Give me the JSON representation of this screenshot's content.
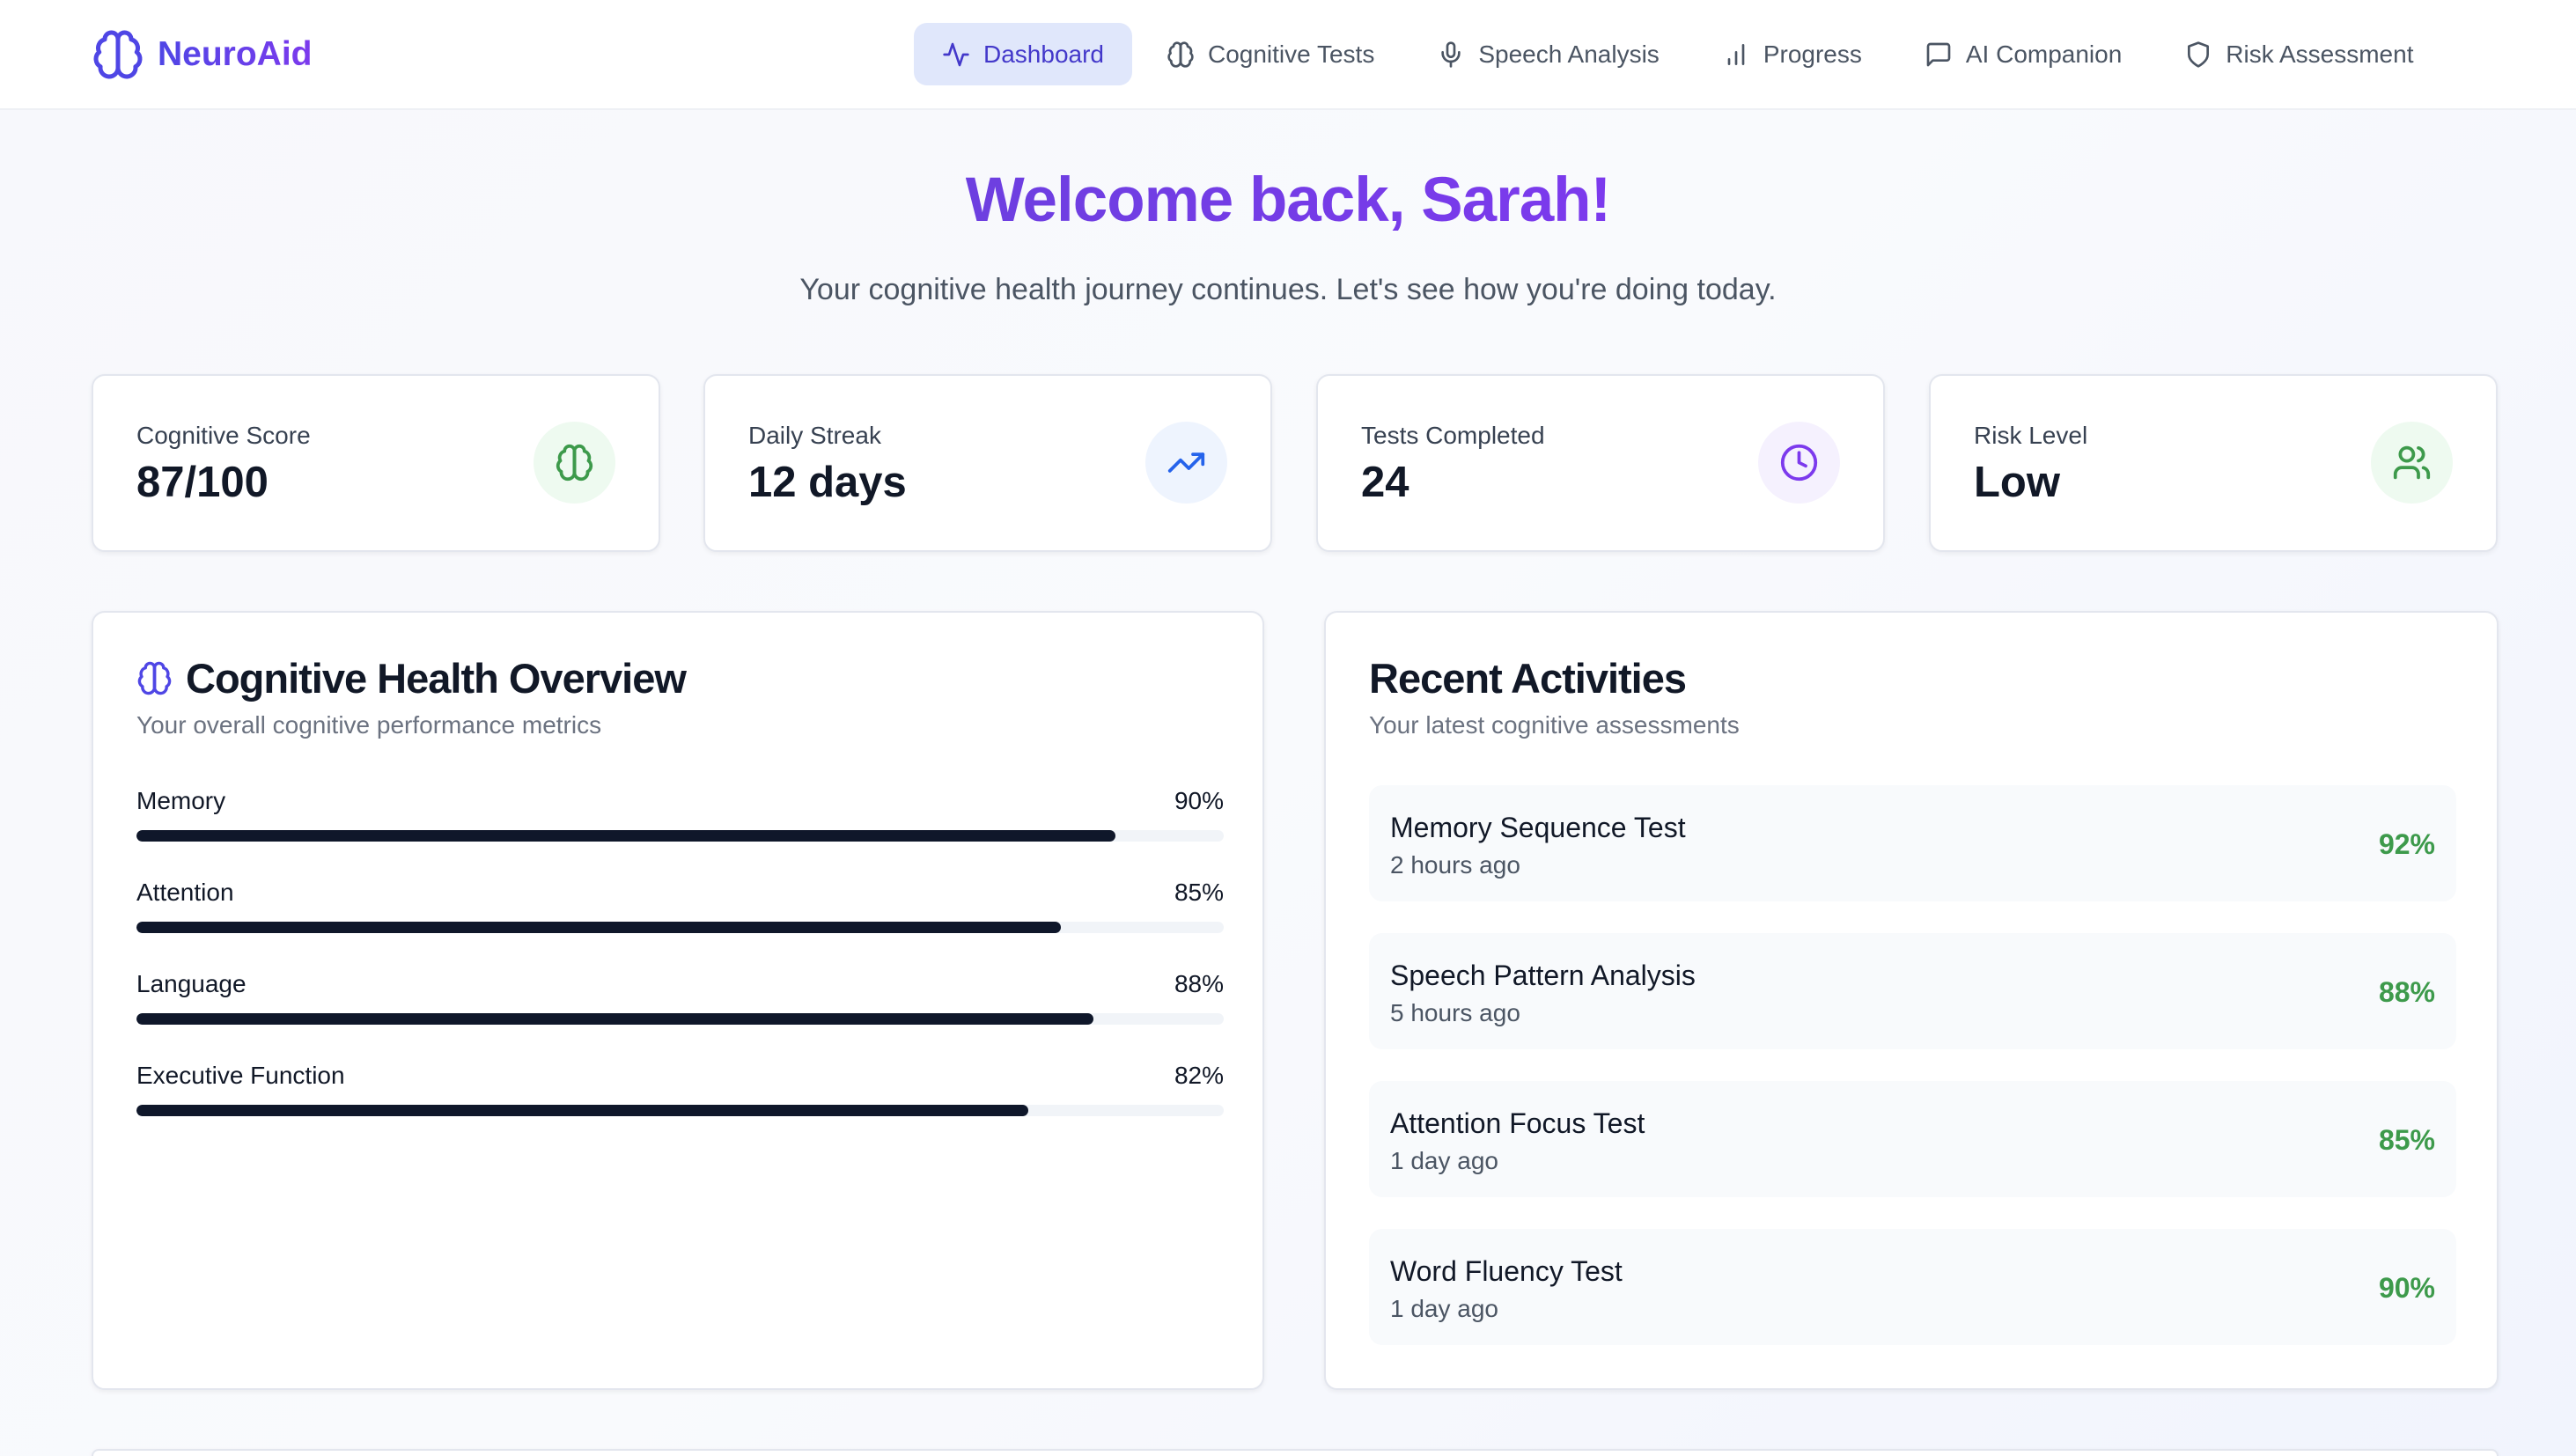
{
  "app": {
    "name": "NeuroAid",
    "brand_color": "#5b3fe0"
  },
  "nav": {
    "items": [
      {
        "label": "Dashboard",
        "icon": "activity-icon",
        "active": true
      },
      {
        "label": "Cognitive Tests",
        "icon": "brain-icon"
      },
      {
        "label": "Speech Analysis",
        "icon": "mic-icon"
      },
      {
        "label": "Progress",
        "icon": "bar-chart-icon"
      },
      {
        "label": "AI Companion",
        "icon": "message-square-icon"
      },
      {
        "label": "Risk Assessment",
        "icon": "shield-icon"
      }
    ]
  },
  "hero": {
    "title": "Welcome back, Sarah!",
    "subtitle": "Your cognitive health journey continues. Let's see how you're doing today."
  },
  "stats": [
    {
      "label": "Cognitive Score",
      "value": "87/100",
      "icon": "brain-icon",
      "color": "#3d9a4b",
      "bg": "#eefaf0"
    },
    {
      "label": "Daily Streak",
      "value": "12 days",
      "icon": "trending-up-icon",
      "color": "#2563eb",
      "bg": "#eef4fe"
    },
    {
      "label": "Tests Completed",
      "value": "24",
      "icon": "clock-icon",
      "color": "#7c3aed",
      "bg": "#f5f1fe"
    },
    {
      "label": "Risk Level",
      "value": "Low",
      "icon": "users-icon",
      "color": "#3d9a4b",
      "bg": "#eefaf0"
    }
  ],
  "overview": {
    "title": "Cognitive Health Overview",
    "subtitle": "Your overall cognitive performance metrics",
    "metrics": [
      {
        "label": "Memory",
        "value": "90%",
        "percent": 90
      },
      {
        "label": "Attention",
        "value": "85%",
        "percent": 85
      },
      {
        "label": "Language",
        "value": "88%",
        "percent": 88
      },
      {
        "label": "Executive Function",
        "value": "82%",
        "percent": 82
      }
    ]
  },
  "activities": {
    "title": "Recent Activities",
    "subtitle": "Your latest cognitive assessments",
    "items": [
      {
        "title": "Memory Sequence Test",
        "time": "2 hours ago",
        "score": "92%"
      },
      {
        "title": "Speech Pattern Analysis",
        "time": "5 hours ago",
        "score": "88%"
      },
      {
        "title": "Attention Focus Test",
        "time": "1 day ago",
        "score": "85%"
      },
      {
        "title": "Word Fluency Test",
        "time": "1 day ago",
        "score": "90%"
      }
    ]
  }
}
